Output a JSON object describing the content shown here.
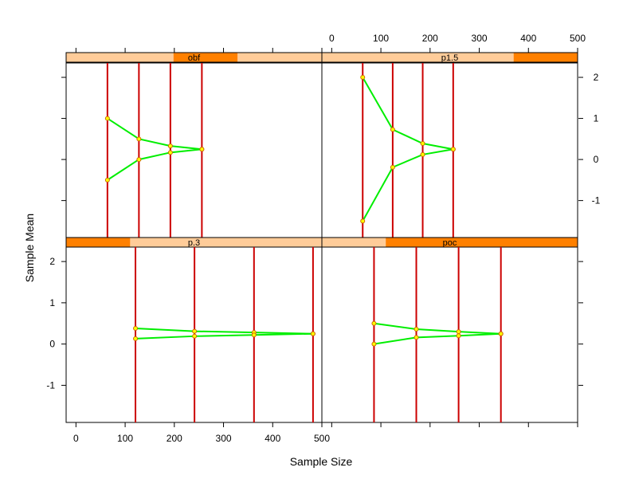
{
  "chart_data": {
    "type": "trellis-line",
    "xlabel": "Sample Size",
    "ylabel": "Sample Mean",
    "xlim": [
      -20,
      500
    ],
    "ylim": [
      -1.9,
      2.35
    ],
    "x_ticks": [
      0,
      100,
      200,
      300,
      400,
      500
    ],
    "y_ticks": [
      -1,
      0,
      1,
      2
    ],
    "y_tick_labels": [
      "-1",
      "0",
      "1",
      "2"
    ],
    "line_color": "#00ee00",
    "spike_color": "#cc0000",
    "point_color": "#cc6600",
    "strip_bg": "#ffcc99",
    "strip_fg": "#ff8000",
    "panels": [
      {
        "name": "obf",
        "strip_range": [
          0.42,
          0.67
        ],
        "points": [
          {
            "n": 64,
            "upper": 1.0,
            "lower": -0.5
          },
          {
            "n": 128,
            "upper": 0.5,
            "lower": 0.0
          },
          {
            "n": 192,
            "upper": 0.33,
            "lower": 0.17
          },
          {
            "n": 256,
            "upper": 0.25,
            "lower": 0.25
          }
        ]
      },
      {
        "name": "p1.5",
        "strip_range": [
          0.75,
          1.0
        ],
        "points": [
          {
            "n": 63,
            "upper": 2.0,
            "lower": -1.5
          },
          {
            "n": 124,
            "upper": 0.73,
            "lower": -0.19
          },
          {
            "n": 185,
            "upper": 0.39,
            "lower": 0.12
          },
          {
            "n": 247,
            "upper": 0.25,
            "lower": 0.25
          }
        ]
      },
      {
        "name": "p.3",
        "strip_range": [
          0.0,
          0.25
        ],
        "points": [
          {
            "n": 121,
            "upper": 0.38,
            "lower": 0.13
          },
          {
            "n": 241,
            "upper": 0.31,
            "lower": 0.19
          },
          {
            "n": 362,
            "upper": 0.28,
            "lower": 0.22
          },
          {
            "n": 482,
            "upper": 0.25,
            "lower": 0.25
          }
        ]
      },
      {
        "name": "poc",
        "strip_range": [
          0.25,
          1.0
        ],
        "points": [
          {
            "n": 86,
            "upper": 0.5,
            "lower": 0.0
          },
          {
            "n": 172,
            "upper": 0.36,
            "lower": 0.16
          },
          {
            "n": 258,
            "upper": 0.3,
            "lower": 0.2
          },
          {
            "n": 344,
            "upper": 0.25,
            "lower": 0.25
          }
        ]
      }
    ]
  }
}
